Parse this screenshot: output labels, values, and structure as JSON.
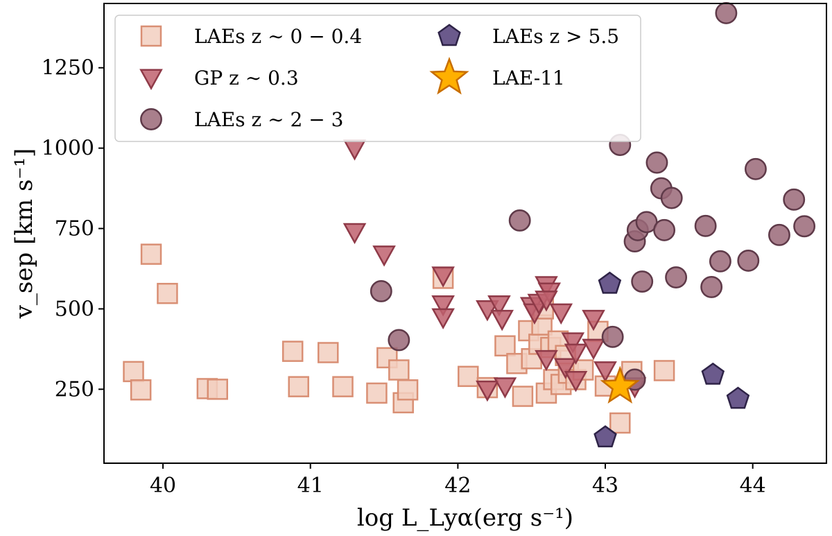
{
  "chart_data": {
    "type": "scatter",
    "xlabel": "log L_Lyα(erg s⁻¹)",
    "ylabel": "v_sep [km s⁻¹]",
    "xlim": [
      39.6,
      44.5
    ],
    "ylim": [
      20,
      1450
    ],
    "xticks": [
      40,
      41,
      42,
      43,
      44
    ],
    "yticks": [
      250,
      500,
      750,
      1000,
      1250
    ],
    "grid": false,
    "legend_position": "top-left",
    "series": [
      {
        "name": "LAEs z ∼ 0 − 0.4",
        "marker": "square",
        "fill": "#f2cfc0",
        "stroke": "#d98f74",
        "points": [
          [
            39.8,
            305
          ],
          [
            39.85,
            248
          ],
          [
            39.92,
            670
          ],
          [
            40.03,
            548
          ],
          [
            40.3,
            252
          ],
          [
            40.37,
            250
          ],
          [
            40.88,
            368
          ],
          [
            40.92,
            258
          ],
          [
            41.12,
            364
          ],
          [
            41.22,
            258
          ],
          [
            41.45,
            238
          ],
          [
            41.52,
            348
          ],
          [
            41.6,
            310
          ],
          [
            41.63,
            208
          ],
          [
            41.66,
            248
          ],
          [
            41.9,
            595
          ],
          [
            42.07,
            290
          ],
          [
            42.2,
            255
          ],
          [
            42.32,
            385
          ],
          [
            42.4,
            330
          ],
          [
            42.44,
            228
          ],
          [
            42.48,
            432
          ],
          [
            42.5,
            345
          ],
          [
            42.55,
            390
          ],
          [
            42.57,
            450
          ],
          [
            42.58,
            500
          ],
          [
            42.6,
            238
          ],
          [
            42.63,
            380
          ],
          [
            42.65,
            280
          ],
          [
            42.68,
            400
          ],
          [
            42.7,
            265
          ],
          [
            42.73,
            355
          ],
          [
            42.75,
            300
          ],
          [
            42.8,
            280
          ],
          [
            42.85,
            310
          ],
          [
            42.95,
            430
          ],
          [
            43.0,
            260
          ],
          [
            43.1,
            145
          ],
          [
            43.18,
            305
          ],
          [
            43.4,
            308
          ]
        ]
      },
      {
        "name": "GP z ∼ 0.3",
        "marker": "triangle-down",
        "fill": "#c0616f",
        "stroke": "#8f3a48",
        "points": [
          [
            41.3,
            1000
          ],
          [
            41.3,
            740
          ],
          [
            41.5,
            670
          ],
          [
            41.9,
            605
          ],
          [
            41.9,
            515
          ],
          [
            41.9,
            475
          ],
          [
            42.2,
            500
          ],
          [
            42.2,
            250
          ],
          [
            42.28,
            515
          ],
          [
            42.3,
            470
          ],
          [
            42.32,
            260
          ],
          [
            42.5,
            510
          ],
          [
            42.52,
            490
          ],
          [
            42.55,
            520
          ],
          [
            42.6,
            575
          ],
          [
            42.62,
            555
          ],
          [
            42.6,
            530
          ],
          [
            42.6,
            345
          ],
          [
            42.7,
            490
          ],
          [
            42.73,
            320
          ],
          [
            42.78,
            400
          ],
          [
            42.8,
            365
          ],
          [
            42.8,
            280
          ],
          [
            42.92,
            470
          ],
          [
            42.92,
            380
          ],
          [
            43.0,
            310
          ],
          [
            43.2,
            260
          ]
        ]
      },
      {
        "name": "LAEs z ∼ 2 − 3",
        "marker": "circle",
        "fill": "#9a6878",
        "stroke": "#5f3a49",
        "points": [
          [
            41.48,
            555
          ],
          [
            41.6,
            403
          ],
          [
            42.42,
            775
          ],
          [
            43.05,
            413
          ],
          [
            43.1,
            1010
          ],
          [
            43.2,
            280
          ],
          [
            43.2,
            710
          ],
          [
            43.22,
            745
          ],
          [
            43.25,
            585
          ],
          [
            43.28,
            770
          ],
          [
            43.35,
            955
          ],
          [
            43.38,
            875
          ],
          [
            43.4,
            745
          ],
          [
            43.45,
            845
          ],
          [
            43.48,
            598
          ],
          [
            43.68,
            758
          ],
          [
            43.72,
            568
          ],
          [
            43.78,
            648
          ],
          [
            43.82,
            1420
          ],
          [
            43.97,
            650
          ],
          [
            44.02,
            935
          ],
          [
            44.18,
            730
          ],
          [
            44.28,
            840
          ],
          [
            44.35,
            757
          ]
        ]
      },
      {
        "name": "LAEs z > 5.5",
        "marker": "pentagon",
        "fill": "#6b5a8c",
        "stroke": "#2e2347",
        "points": [
          [
            43.03,
            578
          ],
          [
            43.0,
            100
          ],
          [
            43.73,
            295
          ],
          [
            43.9,
            220
          ]
        ]
      },
      {
        "name": "LAE-11",
        "marker": "star",
        "fill": "#ffb000",
        "stroke": "#c86e00",
        "points": [
          [
            43.1,
            258
          ]
        ]
      }
    ]
  }
}
